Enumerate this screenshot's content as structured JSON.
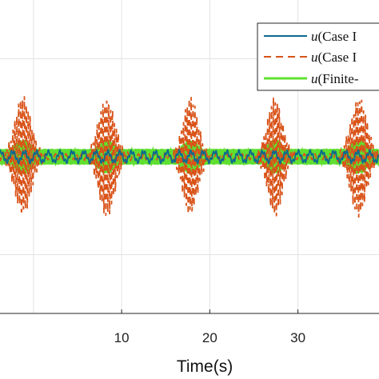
{
  "chart_data": {
    "type": "line",
    "title": "",
    "xlabel": "Time(s)",
    "ylabel": "",
    "x_ticks": [
      "10",
      "20",
      "30"
    ],
    "x_tick_values": [
      10,
      20,
      30
    ],
    "xlim": [
      -3.8,
      39.2
    ],
    "ylim": [
      -1.6,
      1.6
    ],
    "grid": true,
    "legend_position": "top-right",
    "series": [
      {
        "name_var": "u",
        "name_rest": "(Case I",
        "style": "solid",
        "color": "#0b6b8f",
        "amplitude": 0.05,
        "envelope": "flat"
      },
      {
        "name_var": "u",
        "name_rest": "(Case I",
        "style": "dashed",
        "color": "#d95319",
        "amplitude": 0.6,
        "envelope": "bursts",
        "burst_centers": [
          -1.2,
          8.3,
          17.8,
          27.4,
          36.9
        ],
        "burst_widths": [
          1.3,
          1.3,
          1.2,
          1.2,
          1.3
        ]
      },
      {
        "name_var": "u",
        "name_rest": "(Finite-",
        "style": "solid",
        "color": "#5fe030",
        "amplitude": 0.18,
        "envelope": "modulated",
        "burst_centers": [
          -1.2,
          8.3,
          17.8,
          27.4,
          36.9
        ],
        "burst_widths": [
          1.6,
          1.6,
          1.5,
          1.5,
          1.6
        ]
      }
    ]
  }
}
